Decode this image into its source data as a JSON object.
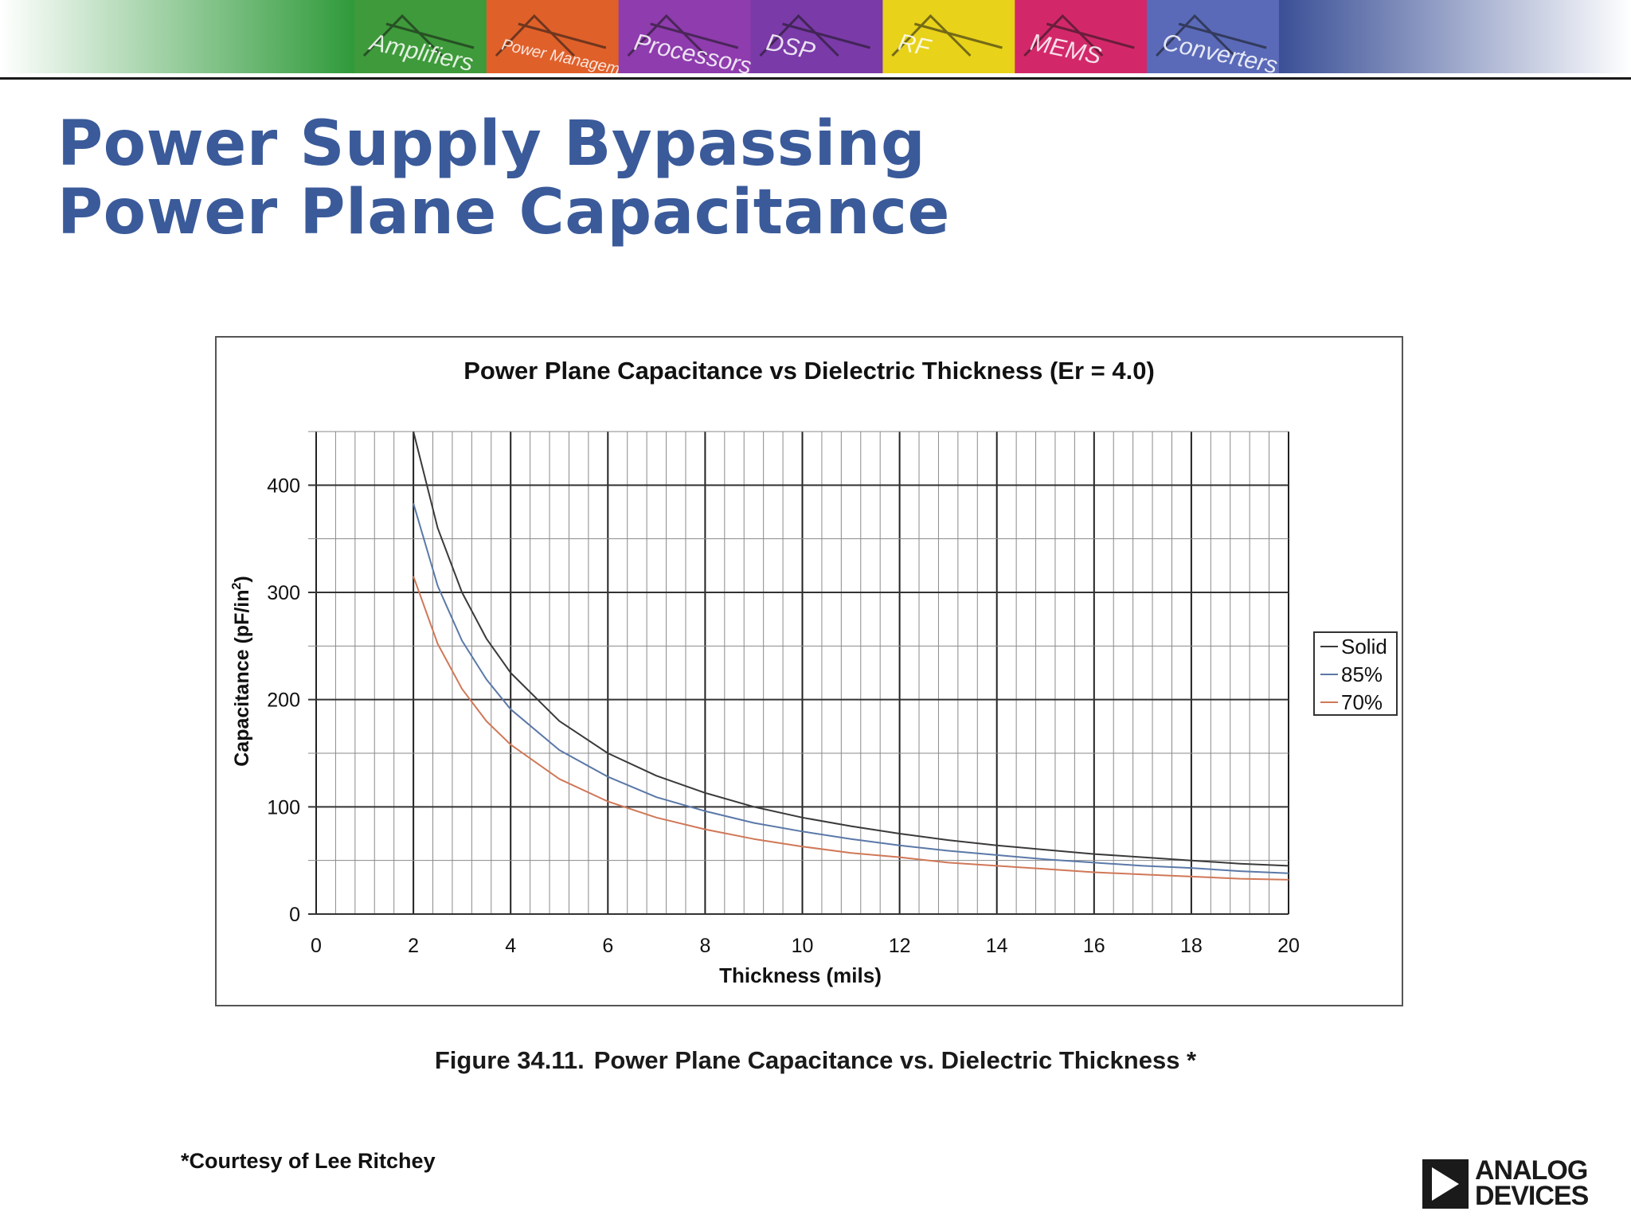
{
  "banner": {
    "tiles": [
      {
        "label": "Amplifiers",
        "color": "#3e9a3a"
      },
      {
        "label": "Power Management",
        "color": "#e0602a"
      },
      {
        "label": "Processors",
        "color": "#8e3cae"
      },
      {
        "label": "DSP",
        "color": "#7a3aa8"
      },
      {
        "label": "RF",
        "color": "#e8d21a"
      },
      {
        "label": "MEMS",
        "color": "#d2286a"
      },
      {
        "label": "Converters",
        "color": "#5a6ab8"
      }
    ],
    "left_fade": "#2f9a3a",
    "right_fade": "#3a4f96"
  },
  "slide": {
    "title_line1": "Power Supply Bypassing",
    "title_line2": "Power Plane Capacitance",
    "title_color": "#3a5a9a"
  },
  "chart_data": {
    "type": "line",
    "title": "Power Plane Capacitance vs Dielectric Thickness (Er = 4.0)",
    "xlabel": "Thickness (mils)",
    "ylabel_main": "Capacitance (pF/in",
    "ylabel_sup": "2",
    "ylabel_end": ")",
    "xlim": [
      0,
      20
    ],
    "ylim": [
      0,
      450
    ],
    "x_ticks": [
      "0",
      "2",
      "4",
      "6",
      "8",
      "10",
      "12",
      "14",
      "16",
      "18",
      "20"
    ],
    "y_ticks": [
      "0",
      "100",
      "200",
      "300",
      "400"
    ],
    "grid": true,
    "legend_position": "right",
    "x": [
      2,
      2.5,
      3,
      3.5,
      4,
      5,
      6,
      7,
      8,
      9,
      10,
      11,
      12,
      13,
      14,
      15,
      16,
      17,
      18,
      19,
      20
    ],
    "series": [
      {
        "name": "Solid",
        "color": "#3a3a3a",
        "values": [
          450,
          360,
          300,
          257,
          225,
          180,
          150,
          129,
          113,
          100,
          90,
          82,
          75,
          69,
          64,
          60,
          56,
          53,
          50,
          47,
          45
        ]
      },
      {
        "name": "85%",
        "color": "#5a78a8",
        "values": [
          383,
          306,
          255,
          219,
          191,
          153,
          128,
          109,
          96,
          85,
          77,
          70,
          64,
          59,
          55,
          51,
          48,
          45,
          43,
          40,
          38
        ]
      },
      {
        "name": "70%",
        "color": "#d07858",
        "values": [
          315,
          252,
          210,
          180,
          158,
          126,
          105,
          90,
          79,
          70,
          63,
          57,
          53,
          48,
          45,
          42,
          39,
          37,
          35,
          33,
          32
        ]
      }
    ]
  },
  "figure": {
    "caption_left": "Figure 34.11.",
    "caption_right": "Power Plane Capacitance vs. Dielectric Thickness *"
  },
  "footer": {
    "courtesy": "*Courtesy of Lee Ritchey",
    "logo_line1": "ANALOG",
    "logo_line2": "DEVICES"
  }
}
